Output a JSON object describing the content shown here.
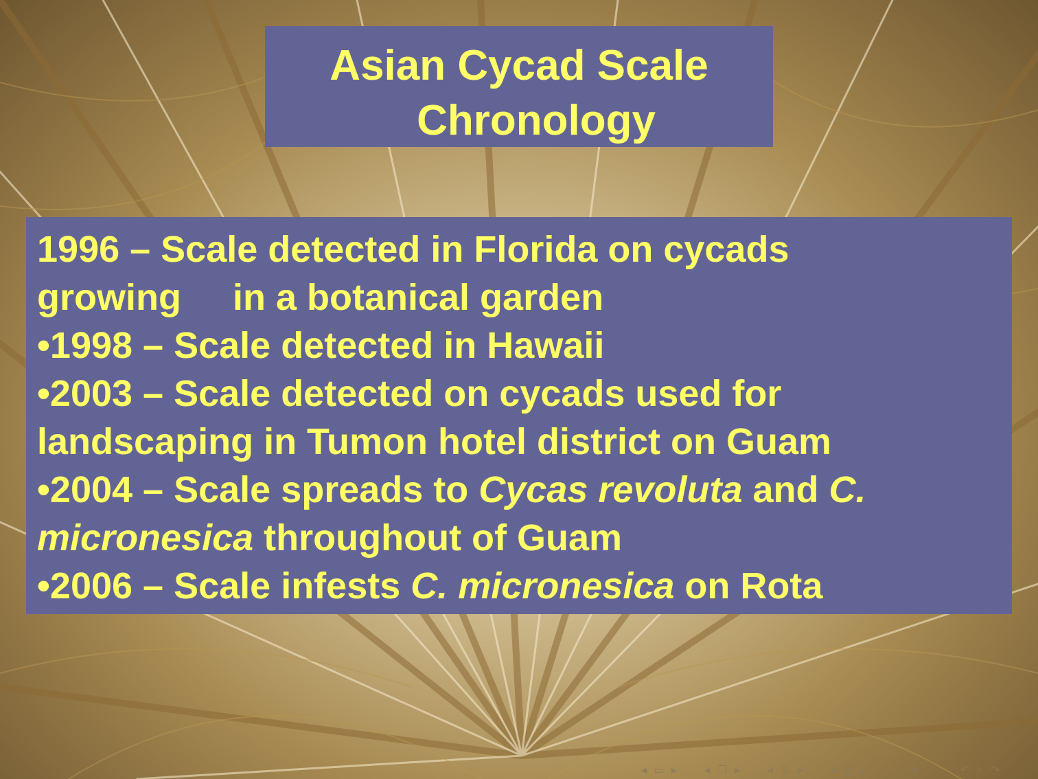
{
  "title": {
    "line1": "Asian Cycad Scale",
    "line2": "Chronology"
  },
  "entries": [
    {
      "l1": "1996 – Scale detected in Florida on cycads",
      "l2": "growing     in a botanical garden"
    },
    {
      "l1": "•1998 – Scale detected in Hawaii"
    },
    {
      "l1": "•2003 – Scale detected on cycads used for",
      "l2": "landscaping in Tumon hotel district on Guam"
    },
    {
      "l1a": "•2004 – Scale spreads to ",
      "l1b": "Cycas revoluta",
      "l1c": " and ",
      "l1d": "C.",
      "l2a": "micronesica",
      "l2b": " throughout of Guam"
    },
    {
      "l1a": "•2006 – Scale infests ",
      "l1b": "C. micronesica",
      "l1c": " on Rota"
    }
  ],
  "nav": {
    "icons": [
      "arrow-left-icon",
      "frame-icon",
      "arrow-right-icon",
      "arrow-left-icon",
      "subsection-icon",
      "arrow-right-icon",
      "arrow-left-icon",
      "section-icon",
      "arrow-right-icon",
      "arrow-left-icon",
      "section-icon",
      "arrow-right-icon",
      "align-icon",
      "search-back-icon",
      "search-icon",
      "search-forward-icon"
    ]
  },
  "colors": {
    "box": "#636496",
    "text": "#ffff66"
  }
}
